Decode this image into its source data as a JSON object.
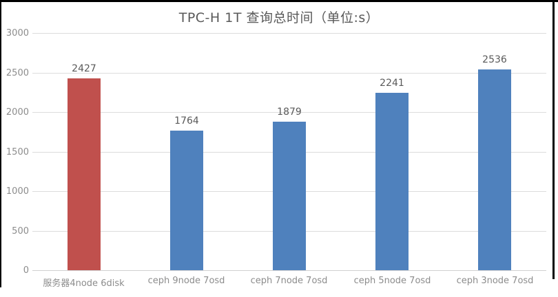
{
  "chart_data": {
    "type": "bar",
    "title": "TPC-H 1T 查询总时间（单位:s）",
    "categories": [
      "服务器4node 6disk",
      "ceph 9node 7osd",
      "ceph 7node 7osd",
      "ceph 5node 7osd",
      "ceph 3node 7osd"
    ],
    "values": [
      2427,
      1764,
      1879,
      2241,
      2536
    ],
    "value_labels": [
      "2427",
      "1764",
      "1879",
      "2241",
      "2536"
    ],
    "bar_colors": [
      "#c0504d",
      "#4f81bd",
      "#4f81bd",
      "#4f81bd",
      "#4f81bd"
    ],
    "xlabel": "",
    "ylabel": "",
    "ylim": [
      0,
      3000
    ],
    "yticks": [
      0,
      500,
      1000,
      1500,
      2000,
      2500,
      3000
    ],
    "grid": true,
    "legend_position": "none",
    "value_labels_shown": true
  },
  "colors": {
    "accent_red": "#c0504d",
    "accent_blue": "#4f81bd",
    "gridline": "#dcdcdc",
    "axis_text": "#8c8c8c",
    "value_text": "#595959",
    "title_text": "#595959",
    "frame_border": "#000000",
    "background": "#ffffff"
  }
}
